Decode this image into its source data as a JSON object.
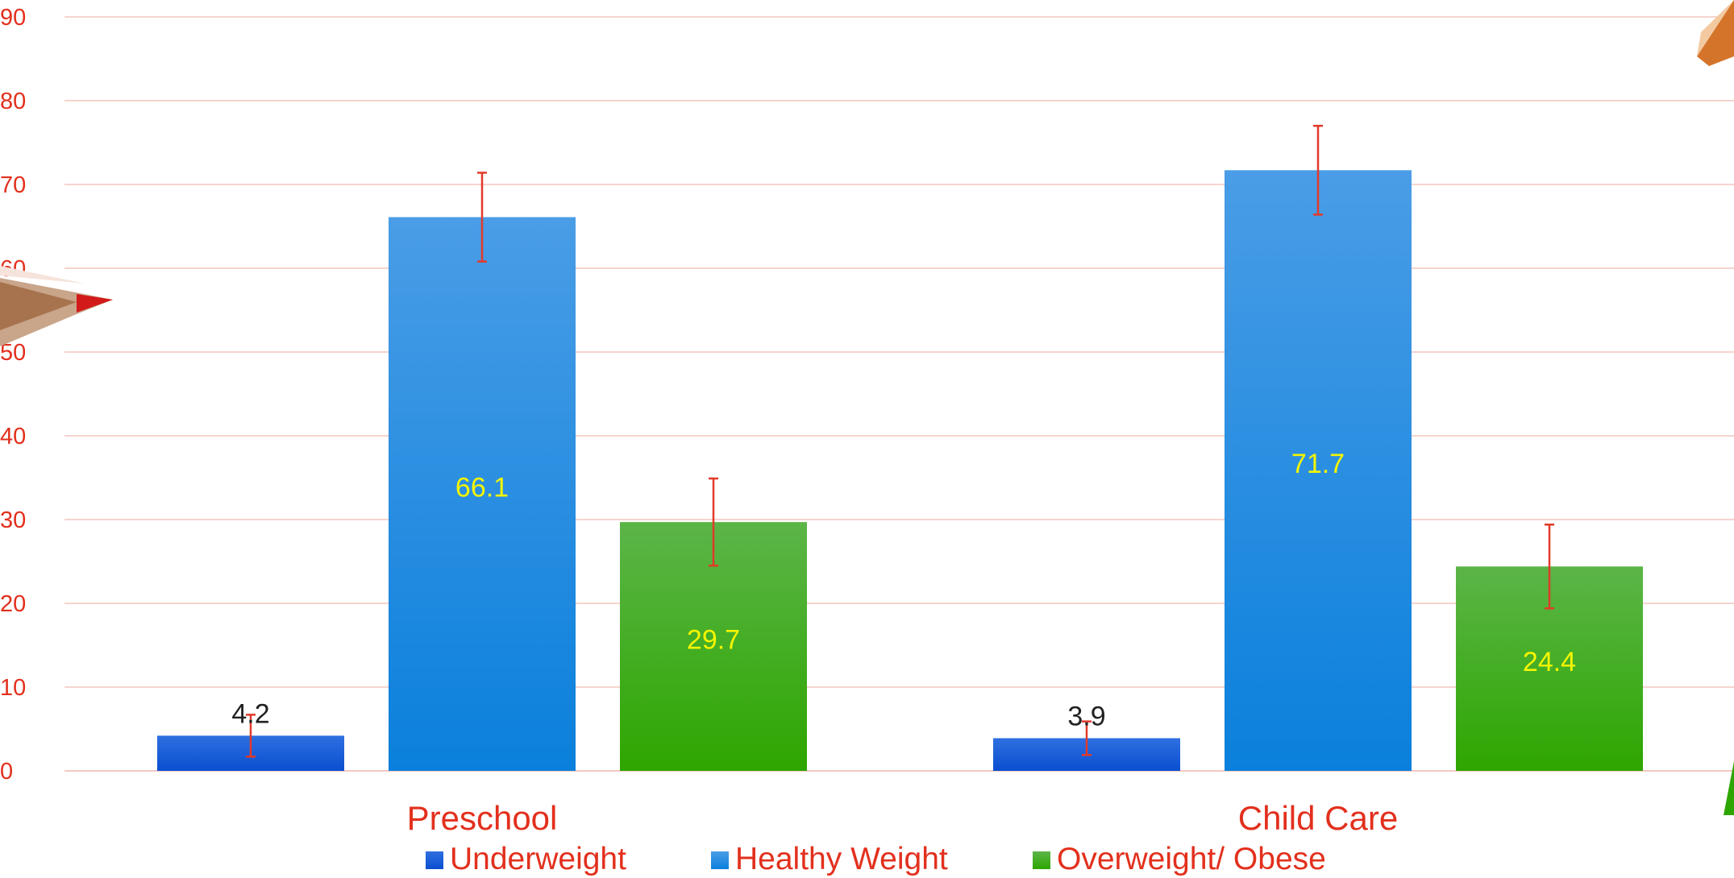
{
  "chart_data": {
    "type": "bar",
    "categories": [
      "Preschool",
      "Child Care"
    ],
    "series": [
      {
        "name": "Underweight",
        "values": [
          4.2,
          3.9
        ],
        "error": [
          2.5,
          2.0
        ],
        "color_top": "#2f6fe0",
        "color_bottom": "#0a4fd0",
        "label_color": "#222222"
      },
      {
        "name": "Healthy Weight",
        "values": [
          66.1,
          71.7
        ],
        "error": [
          5.3,
          5.3
        ],
        "color_top": "#4a9de6",
        "color_bottom": "#0a80dc",
        "label_color": "#f5f500"
      },
      {
        "name": "Overweight/ Obese",
        "values": [
          29.7,
          24.4
        ],
        "error": [
          5.2,
          5.0
        ],
        "color_top": "#5bb548",
        "color_bottom": "#2ea600",
        "label_color": "#f5f500"
      }
    ],
    "ylim": [
      0,
      90
    ],
    "yticks": [
      0,
      10,
      20,
      30,
      40,
      50,
      60,
      70,
      80,
      90
    ],
    "grid": true,
    "legend_position": "bottom",
    "axis_color": "#e2301d",
    "grid_color": "#f4c5bd",
    "error_bar_color": "#e23a2a"
  }
}
